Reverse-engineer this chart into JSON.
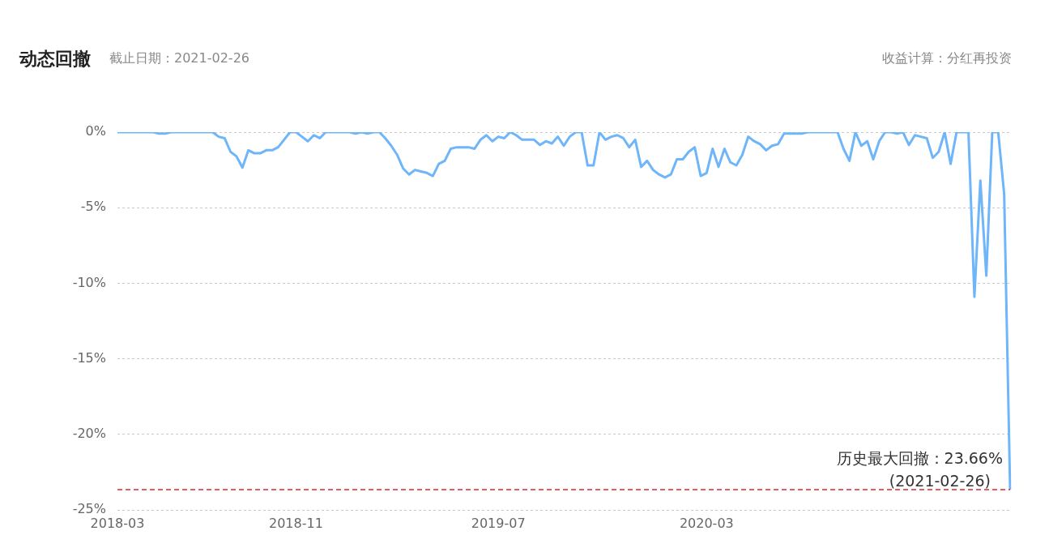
{
  "chart_data": {
    "type": "line",
    "title": "动态回撤",
    "subtitle": "截止日期：2021-02-26",
    "annotations": [
      "收益计算：分红再投资",
      {
        "text": "(2021-02-26)",
        "y": -23.66
      }
    ],
    "categories": [
      "2018-03",
      null,
      null,
      null,
      null,
      null,
      null,
      null,
      null,
      null,
      null,
      null,
      null,
      null,
      null,
      null,
      null,
      null,
      null,
      null,
      null,
      null,
      null,
      null,
      null,
      null,
      null,
      null,
      null,
      null,
      "2018-11",
      null,
      null,
      null,
      null,
      null,
      null,
      null,
      null,
      null,
      null,
      null,
      null,
      null,
      null,
      null,
      null,
      null,
      null,
      null,
      null,
      null,
      null,
      null,
      null,
      null,
      null,
      null,
      null,
      null,
      null,
      null,
      null,
      null,
      "2019-07",
      null,
      null,
      null,
      null,
      null,
      null,
      null,
      null,
      null,
      null,
      null,
      null,
      null,
      null,
      null,
      null,
      null,
      null,
      null,
      null,
      null,
      null,
      null,
      null,
      null,
      null,
      null,
      null,
      null,
      null,
      null,
      null,
      null,
      null,
      "2020-03",
      null,
      null,
      null,
      null,
      null,
      null,
      null,
      null,
      null,
      null,
      null,
      null,
      null,
      null,
      null,
      null,
      null,
      null,
      null,
      null,
      null,
      null,
      null,
      null,
      null,
      null,
      null,
      null,
      null,
      null,
      null,
      null,
      null,
      null,
      null,
      null,
      null,
      null,
      null,
      null,
      null,
      null,
      null,
      null,
      null,
      null,
      null,
      null,
      null,
      null,
      null
    ],
    "series": [
      {
        "color": "#6eb5fa",
        "values": [
          0,
          0,
          0,
          0,
          0,
          0,
          0,
          -0.1,
          -0.1,
          0,
          0,
          0,
          0,
          0,
          0,
          0,
          0,
          -0.3,
          -0.4,
          -1.3,
          -1.6,
          -2.35,
          -1.2,
          -1.4,
          -1.4,
          -1.2,
          -1.2,
          -1.0,
          -0.5,
          0,
          0,
          -0.3,
          -0.6,
          -0.2,
          -0.4,
          0,
          0,
          0,
          0,
          0,
          -0.1,
          0,
          -0.1,
          0,
          0,
          -0.4,
          -0.9,
          -1.5,
          -2.4,
          -2.8,
          -2.5,
          -2.6,
          -2.7,
          -2.9,
          -2.1,
          -1.9,
          -1.1,
          -1.0,
          -1.0,
          -1.0,
          -1.1,
          -0.5,
          -0.2,
          -0.6,
          -0.3,
          -0.4,
          0,
          -0.2,
          -0.5,
          -0.5,
          -0.5,
          -0.85,
          -0.6,
          -0.75,
          -0.3,
          -0.9,
          -0.3,
          0,
          0,
          -2.2,
          -2.2,
          0,
          -0.5,
          -0.3,
          -0.2,
          -0.4,
          -1.0,
          -0.5,
          -2.3,
          -1.9,
          -2.5,
          -2.8,
          -3.0,
          -2.8,
          -1.8,
          -1.8,
          -1.3,
          -1.0,
          -2.9,
          -2.7,
          -1.1,
          -2.3,
          -1.1,
          -2.0,
          -2.2,
          -1.5,
          -0.3,
          -0.6,
          -0.8,
          -1.2,
          -0.9,
          -0.8,
          -0.1,
          -0.1,
          -0.1,
          -0.1,
          0,
          0,
          0,
          0,
          0,
          0,
          -1.1,
          -1.9,
          0,
          -0.9,
          -0.6,
          -1.8,
          -0.6,
          0,
          0,
          -0.1,
          0,
          -0.85,
          -0.2,
          -0.3,
          -0.4,
          -1.7,
          -1.3,
          0,
          -2.1,
          0,
          0,
          0,
          -10.9,
          -3.2,
          -9.5,
          0,
          0,
          -4.1,
          -23.66
        ]
      }
    ],
    "ylim": [
      -25,
      0
    ],
    "yticks": [
      {
        "value": -25,
        "label": "-25%"
      },
      {
        "value": -20,
        "label": "-20%"
      },
      {
        "value": -15,
        "label": "-15%"
      },
      {
        "value": -10,
        "label": "-10%"
      },
      {
        "value": -5,
        "label": "-5%"
      },
      {
        "value": 0,
        "label": "0%"
      }
    ],
    "ref_lines": [
      {
        "axis": "y",
        "value": -23.66,
        "label": "历史最大回撤：23.66%",
        "color": "#e8262b",
        "line_style": "dashed"
      }
    ],
    "grid": "y",
    "legend": false,
    "marker": "none",
    "line_style": "solid"
  }
}
